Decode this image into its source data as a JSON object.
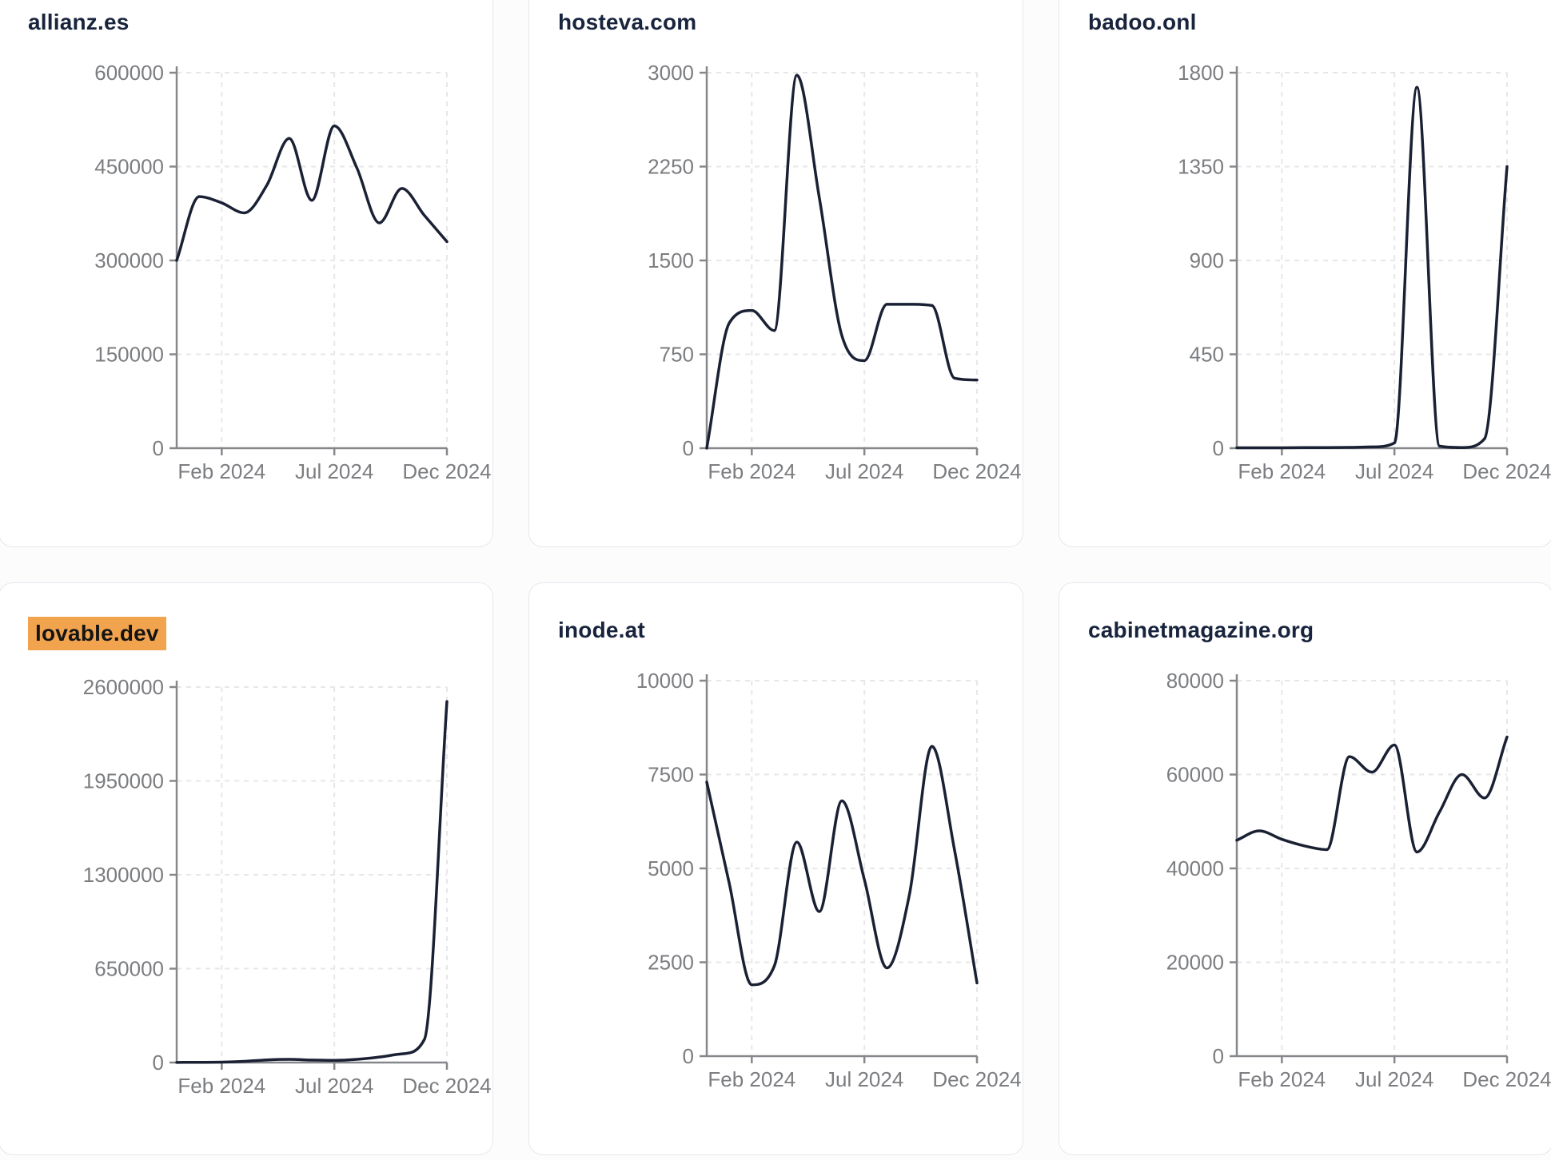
{
  "colors": {
    "page_bg": "#fcfcfd",
    "card_bg": "#ffffff",
    "card_border": "#e5e8ee",
    "title_text": "#18243d",
    "highlight_bg": "#f2a34e",
    "highlight_text": "#141414",
    "line": "#1b2134",
    "axis": "#85878b",
    "tick_label": "#7b7d80",
    "grid": "#e7e7e9"
  },
  "chart_data": [
    {
      "type": "line",
      "title": "allianz.es",
      "title_highlight": false,
      "x": [
        "Dec 2023",
        "Jan 2024",
        "Feb 2024",
        "Mar 2024",
        "Apr 2024",
        "May 2024",
        "Jun 2024",
        "Jul 2024",
        "Aug 2024",
        "Sep 2024",
        "Oct 2024",
        "Nov 2024",
        "Dec 2024"
      ],
      "values": [
        300000,
        402000,
        392000,
        376000,
        420000,
        495000,
        396000,
        515000,
        448000,
        360000,
        415000,
        372000,
        330000
      ],
      "y_ticks": [
        0,
        150000,
        300000,
        450000,
        600000
      ],
      "ylim": [
        0,
        600000
      ],
      "x_tick_labels": [
        "Feb 2024",
        "Jul 2024",
        "Dec 2024"
      ],
      "x_tick_indices": [
        2,
        7,
        12
      ],
      "grid": "dashed",
      "legend": "none"
    },
    {
      "type": "line",
      "title": "hosteva.com",
      "title_highlight": false,
      "x": [
        "Dec 2023",
        "Jan 2024",
        "Feb 2024",
        "Mar 2024",
        "Apr 2024",
        "May 2024",
        "Jun 2024",
        "Jul 2024",
        "Aug 2024",
        "Sep 2024",
        "Oct 2024",
        "Nov 2024",
        "Dec 2024"
      ],
      "values": [
        0,
        1000,
        1100,
        940,
        2980,
        2000,
        900,
        700,
        1150,
        1150,
        1140,
        560,
        545
      ],
      "y_ticks": [
        0,
        750,
        1500,
        2250,
        3000
      ],
      "ylim": [
        0,
        3000
      ],
      "x_tick_labels": [
        "Feb 2024",
        "Jul 2024",
        "Dec 2024"
      ],
      "x_tick_indices": [
        2,
        7,
        12
      ],
      "grid": "dashed",
      "legend": "none"
    },
    {
      "type": "line",
      "title": "badoo.onl",
      "title_highlight": false,
      "x": [
        "Dec 2023",
        "Jan 2024",
        "Feb 2024",
        "Mar 2024",
        "Apr 2024",
        "May 2024",
        "Jun 2024",
        "Jul 2024",
        "Aug 2024",
        "Sep 2024",
        "Oct 2024",
        "Nov 2024",
        "Dec 2024"
      ],
      "values": [
        2,
        2,
        2,
        3,
        3,
        4,
        6,
        25,
        1730,
        10,
        3,
        45,
        1350
      ],
      "y_ticks": [
        0,
        450,
        900,
        1350,
        1800
      ],
      "ylim": [
        0,
        1800
      ],
      "x_tick_labels": [
        "Feb 2024",
        "Jul 2024",
        "Dec 2024"
      ],
      "x_tick_indices": [
        2,
        7,
        12
      ],
      "grid": "dashed",
      "legend": "none"
    },
    {
      "type": "line",
      "title": "lovable.dev",
      "title_highlight": true,
      "x": [
        "Dec 2023",
        "Jan 2024",
        "Feb 2024",
        "Mar 2024",
        "Apr 2024",
        "May 2024",
        "Jun 2024",
        "Jul 2024",
        "Aug 2024",
        "Sep 2024",
        "Oct 2024",
        "Nov 2024",
        "Dec 2024"
      ],
      "values": [
        1000,
        1500,
        2500,
        8000,
        18000,
        22000,
        17000,
        15000,
        22000,
        38000,
        60000,
        160000,
        2500000
      ],
      "y_ticks": [
        0,
        650000,
        1300000,
        1950000,
        2600000
      ],
      "ylim": [
        0,
        2600000
      ],
      "x_tick_labels": [
        "Feb 2024",
        "Jul 2024",
        "Dec 2024"
      ],
      "x_tick_indices": [
        2,
        7,
        12
      ],
      "grid": "dashed",
      "legend": "none"
    },
    {
      "type": "line",
      "title": "inode.at",
      "title_highlight": false,
      "x": [
        "Dec 2023",
        "Jan 2024",
        "Feb 2024",
        "Mar 2024",
        "Apr 2024",
        "May 2024",
        "Jun 2024",
        "Jul 2024",
        "Aug 2024",
        "Sep 2024",
        "Oct 2024",
        "Nov 2024",
        "Dec 2024"
      ],
      "values": [
        7300,
        4600,
        1900,
        2400,
        5700,
        3850,
        6800,
        4700,
        2350,
        4300,
        8250,
        5500,
        1950
      ],
      "y_ticks": [
        0,
        2500,
        5000,
        7500,
        10000
      ],
      "ylim": [
        0,
        10000
      ],
      "x_tick_labels": [
        "Feb 2024",
        "Jul 2024",
        "Dec 2024"
      ],
      "x_tick_indices": [
        2,
        7,
        12
      ],
      "grid": "dashed",
      "legend": "none"
    },
    {
      "type": "line",
      "title": "cabinetmagazine.org",
      "title_highlight": false,
      "x": [
        "Dec 2023",
        "Jan 2024",
        "Feb 2024",
        "Mar 2024",
        "Apr 2024",
        "May 2024",
        "Jun 2024",
        "Jul 2024",
        "Aug 2024",
        "Sep 2024",
        "Oct 2024",
        "Nov 2024",
        "Dec 2024"
      ],
      "values": [
        46000,
        48000,
        46200,
        44800,
        44000,
        63800,
        60500,
        66300,
        43500,
        52000,
        60000,
        55000,
        68000
      ],
      "y_ticks": [
        0,
        20000,
        40000,
        60000,
        80000
      ],
      "ylim": [
        0,
        80000
      ],
      "x_tick_labels": [
        "Feb 2024",
        "Jul 2024",
        "Dec 2024"
      ],
      "x_tick_indices": [
        2,
        7,
        12
      ],
      "grid": "dashed",
      "legend": "none"
    }
  ]
}
